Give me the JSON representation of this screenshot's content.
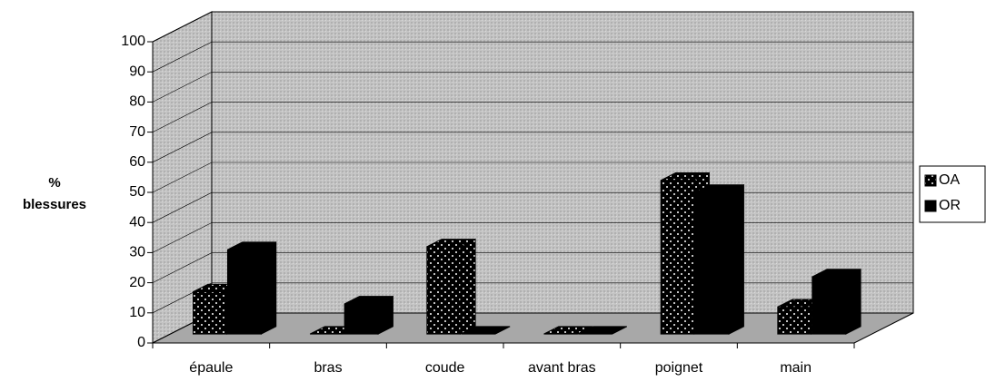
{
  "chart_data": {
    "type": "bar3d",
    "ylabel": [
      "%",
      "blessures"
    ],
    "categories": [
      "épaule",
      "bras",
      "coude",
      "avant bras",
      "poignet",
      "main"
    ],
    "series": [
      {
        "name": "OA",
        "color": "#000000",
        "values": [
          14,
          0,
          29,
          0,
          51,
          9
        ]
      },
      {
        "name": "OR",
        "color": "#ffffff",
        "values": [
          28,
          10,
          0,
          0,
          47,
          19
        ]
      }
    ],
    "ylim": [
      0,
      100
    ],
    "yticks": [
      0,
      10,
      20,
      30,
      40,
      50,
      60,
      70,
      80,
      90,
      100
    ],
    "grid": true,
    "legend": "right"
  }
}
